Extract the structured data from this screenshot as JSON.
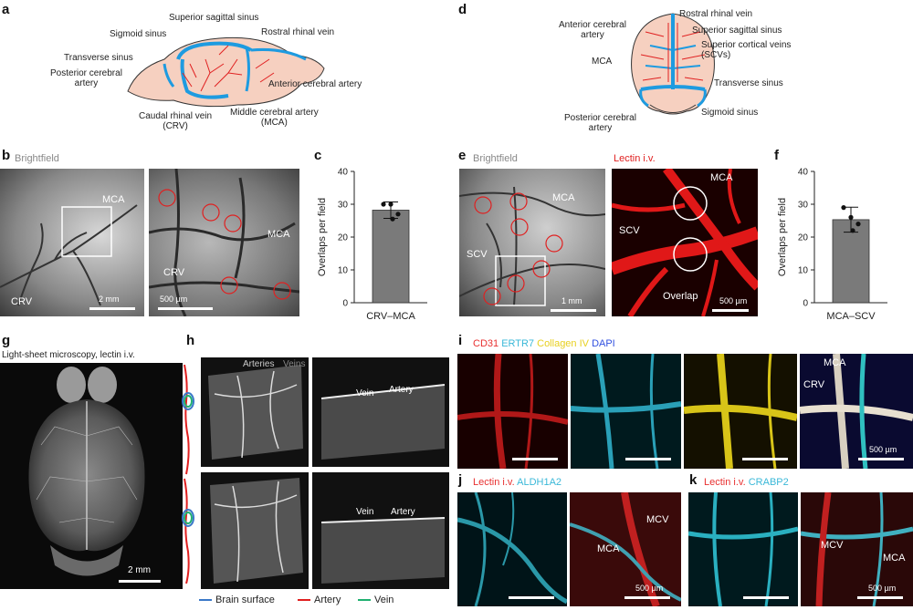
{
  "panels": {
    "a": {
      "letter": "a",
      "labels": {
        "superior_sagittal_sinus": "Superior sagittal sinus",
        "sigmoid_sinus": "Sigmoid sinus",
        "rostral_rhinal_vein": "Rostral rhinal vein",
        "transverse_sinus": "Transverse sinus",
        "posterior_cerebral_artery": [
          "Posterior cerebral",
          "artery"
        ],
        "anterior_cerebral_artery": "Anterior cerebral artery",
        "caudal_rhinal_vein": [
          "Caudal rhinal vein",
          "(CRV)"
        ],
        "middle_cerebral_artery": [
          "Middle cerebral artery",
          "(MCA)"
        ]
      }
    },
    "d": {
      "letter": "d",
      "labels": {
        "anterior_cerebral_artery": [
          "Anterior cerebral",
          "artery"
        ],
        "rostral_rhinal_vein": "Rostral rhinal vein",
        "superior_sagittal_sinus": "Superior sagittal sinus",
        "superior_cortical_veins": [
          "Superior cortical veins",
          "(SCVs)"
        ],
        "mca": "MCA",
        "transverse_sinus": "Transverse sinus",
        "sigmoid_sinus": "Sigmoid sinus",
        "posterior_cerebral_artery": [
          "Posterior cerebral",
          "artery"
        ]
      }
    },
    "b": {
      "letter": "b",
      "title": "Brightfield",
      "left": {
        "mca": "MCA",
        "crv": "CRV",
        "scale": "2 mm"
      },
      "right": {
        "mca": "MCA",
        "crv": "CRV",
        "scale": "500 µm"
      }
    },
    "e": {
      "letter": "e",
      "title_left": "Brightfield",
      "title_right": "Lectin i.v.",
      "left": {
        "mca": "MCA",
        "scv": "SCV",
        "scale": "1 mm"
      },
      "right": {
        "mca": "MCA",
        "scv": "SCV",
        "overlap": "Overlap",
        "scale": "500 µm"
      }
    },
    "g": {
      "letter": "g",
      "title": "Light-sheet microscopy, lectin i.v.",
      "scale": "2 mm"
    },
    "h": {
      "letter": "h",
      "arteries": "Arteries",
      "veins": "Veins",
      "vein": "Vein",
      "artery": "Artery",
      "legend": {
        "brain_surface": "Brain surface",
        "artery": "Artery",
        "vein": "Vein"
      }
    },
    "i": {
      "letter": "i",
      "channels": [
        {
          "name": "CD31",
          "color": "#e83030"
        },
        {
          "name": "ERTR7",
          "color": "#3ab8d8"
        },
        {
          "name": "Collagen IV",
          "color": "#e8d020"
        },
        {
          "name": "DAPI",
          "color": "#3050e0"
        }
      ],
      "mca": "MCA",
      "crv": "CRV",
      "scale": "500 µm"
    },
    "j": {
      "letter": "j",
      "lectin": "Lectin i.v.",
      "marker": "ALDH1A2",
      "mcv": "MCV",
      "mca": "MCA",
      "scale": "500 µm"
    },
    "k": {
      "letter": "k",
      "lectin": "Lectin i.v.",
      "marker": "CRABP2",
      "mcv": "MCV",
      "mca": "MCA",
      "scale": "500 µm"
    }
  },
  "chart_data": [
    {
      "panel": "c",
      "type": "bar",
      "categories": [
        "CRV–MCA"
      ],
      "values": [
        28.2
      ],
      "error": [
        2.5
      ],
      "points": [
        30,
        30,
        27,
        25.5
      ],
      "ylabel": "Overlaps per field",
      "ylim": [
        0,
        40
      ],
      "yticks": [
        0,
        10,
        20,
        30,
        40
      ]
    },
    {
      "panel": "f",
      "type": "bar",
      "categories": [
        "MCA–SCV"
      ],
      "values": [
        25.3
      ],
      "error": [
        3.8
      ],
      "points": [
        29,
        26,
        24,
        22
      ],
      "ylabel": "Overlaps per field",
      "ylim": [
        0,
        40
      ],
      "yticks": [
        0,
        10,
        20,
        30,
        40
      ]
    }
  ],
  "colors": {
    "artery": "#e02020",
    "vein": "#1e9be0",
    "brain": "#f6d0c0",
    "surface": "#3a78c8",
    "vein_legend": "#20b070"
  }
}
